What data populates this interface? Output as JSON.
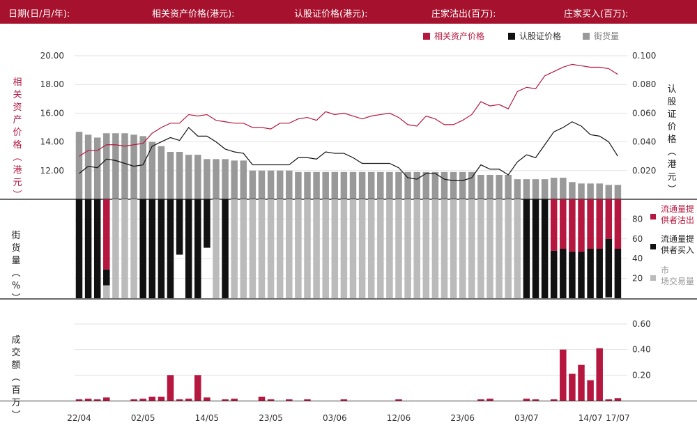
{
  "header": {
    "date": "日期(日/月/年):",
    "underlying": "相关资产价格(港元):",
    "warrant": "认股证价格(港元):",
    "mm_sell": "庄家沽出(百万):",
    "mm_buy": "庄家买入(百万):"
  },
  "legend": {
    "underlying": "相关资产价格",
    "warrant": "认股证价格",
    "outstanding": "街货量"
  },
  "axis_labels": {
    "left_top": "相关资产价格(港元)",
    "right_top": "认股证价格(港元)",
    "left_mid": "街货量(%)",
    "left_bottom": "成交额(百万)"
  },
  "mid_legend": {
    "sell": "流通量提供者沽出",
    "buy": "流通量提供者买入",
    "market": "市场交易量"
  },
  "colors": {
    "brand": "#a6112d",
    "underlying": "#b5173f",
    "warrant": "#111111",
    "outstanding": "#999999",
    "market": "#bbbbbb",
    "turnover": "#b5173f"
  },
  "chart_data": [
    {
      "type": "line",
      "y_left": {
        "range": [
          10.0,
          20.0
        ],
        "ticks": [
          "20.00",
          "18.00",
          "16.00",
          "14.00",
          "12.00"
        ]
      },
      "y_right": {
        "range": [
          0.0,
          0.1
        ],
        "ticks": [
          "0.100",
          "0.080",
          "0.060",
          "0.040",
          "0.020"
        ]
      },
      "x_ticks": [
        "22/04",
        "02/05",
        "14/05",
        "23/05",
        "03/06",
        "12/06",
        "23/06",
        "03/07",
        "14/07",
        "17/07"
      ],
      "x_tick_index": [
        0,
        7,
        14,
        21,
        28,
        35,
        42,
        49,
        56,
        59
      ],
      "series": [
        {
          "name": "相关资产价格",
          "axis": "left",
          "values": [
            13.0,
            13.4,
            13.4,
            13.8,
            13.8,
            13.7,
            13.8,
            13.9,
            14.6,
            15.0,
            15.3,
            15.3,
            15.9,
            15.8,
            15.9,
            15.5,
            15.4,
            15.3,
            15.3,
            15.0,
            15.0,
            14.9,
            15.3,
            15.3,
            15.6,
            15.7,
            15.5,
            16.1,
            15.9,
            16.0,
            15.8,
            15.6,
            15.8,
            15.9,
            16.0,
            15.7,
            15.2,
            15.1,
            15.8,
            15.6,
            15.2,
            15.2,
            15.5,
            15.9,
            16.8,
            16.5,
            16.6,
            16.3,
            17.5,
            17.8,
            17.7,
            18.6,
            18.9,
            19.2,
            19.4,
            19.3,
            19.2,
            19.2,
            19.1,
            18.7
          ]
        },
        {
          "name": "认股证价格",
          "axis": "right",
          "values": [
            0.018,
            0.023,
            0.022,
            0.028,
            0.027,
            0.025,
            0.023,
            0.024,
            0.037,
            0.04,
            0.043,
            0.041,
            0.05,
            0.044,
            0.044,
            0.04,
            0.035,
            0.033,
            0.032,
            0.024,
            0.024,
            0.024,
            0.024,
            0.024,
            0.029,
            0.029,
            0.028,
            0.033,
            0.032,
            0.032,
            0.029,
            0.025,
            0.025,
            0.025,
            0.025,
            0.022,
            0.015,
            0.014,
            0.018,
            0.018,
            0.014,
            0.013,
            0.013,
            0.015,
            0.024,
            0.021,
            0.021,
            0.017,
            0.026,
            0.031,
            0.029,
            0.038,
            0.047,
            0.05,
            0.054,
            0.051,
            0.045,
            0.044,
            0.04,
            0.03
          ]
        },
        {
          "name": "街货量",
          "type": "bar",
          "axis": "left",
          "values": [
            14.7,
            14.5,
            14.3,
            14.6,
            14.6,
            14.6,
            14.5,
            14.4,
            14.0,
            13.7,
            13.3,
            13.3,
            13.1,
            13.1,
            12.8,
            12.8,
            12.8,
            12.7,
            12.7,
            12.0,
            12.0,
            12.0,
            12.0,
            12.0,
            11.9,
            11.9,
            11.9,
            11.9,
            11.9,
            11.9,
            11.9,
            11.9,
            11.9,
            11.9,
            11.9,
            11.9,
            11.9,
            11.9,
            11.9,
            11.9,
            11.9,
            11.9,
            11.9,
            11.9,
            11.7,
            11.7,
            11.7,
            11.7,
            11.4,
            11.4,
            11.4,
            11.4,
            11.5,
            11.5,
            11.2,
            11.1,
            11.1,
            11.1,
            11.0,
            11.0
          ]
        }
      ]
    },
    {
      "type": "bar",
      "y_range": [
        0,
        100
      ],
      "y_ticks": [
        "80",
        "60",
        "40",
        "20"
      ],
      "series": [
        {
          "name": "流通量提供者沽出",
          "values": [
            0,
            0,
            0,
            71,
            0,
            0,
            0,
            0,
            0,
            0,
            0,
            0,
            0,
            0,
            0,
            0,
            0,
            0,
            0,
            0,
            0,
            0,
            0,
            0,
            0,
            0,
            0,
            0,
            0,
            0,
            0,
            0,
            0,
            0,
            0,
            0,
            0,
            0,
            0,
            0,
            0,
            0,
            0,
            0,
            0,
            0,
            0,
            0,
            0,
            0,
            0,
            0,
            52,
            50,
            53,
            53,
            50,
            50,
            40,
            50
          ]
        },
        {
          "name": "流通量提供者买入",
          "values": [
            100,
            100,
            100,
            16,
            0,
            0,
            0,
            100,
            100,
            100,
            100,
            56,
            100,
            100,
            49,
            0,
            100,
            0,
            0,
            0,
            0,
            0,
            0,
            0,
            0,
            0,
            0,
            0,
            0,
            0,
            0,
            0,
            0,
            0,
            0,
            0,
            0,
            0,
            0,
            0,
            0,
            0,
            0,
            0,
            0,
            0,
            0,
            0,
            0,
            100,
            100,
            100,
            48,
            50,
            47,
            47,
            50,
            50,
            59,
            50
          ]
        },
        {
          "name": "市场交易量",
          "values": [
            0,
            0,
            0,
            13,
            100,
            100,
            100,
            0,
            0,
            0,
            0,
            0,
            0,
            0,
            0,
            100,
            0,
            100,
            100,
            100,
            100,
            100,
            100,
            100,
            100,
            100,
            100,
            100,
            100,
            100,
            100,
            100,
            100,
            100,
            100,
            100,
            100,
            100,
            100,
            100,
            100,
            100,
            100,
            100,
            100,
            100,
            100,
            100,
            100,
            0,
            0,
            0,
            0,
            0,
            0,
            0,
            0,
            0,
            1,
            0
          ]
        }
      ],
      "buy_flag": [
        1,
        1,
        1,
        1,
        0,
        0,
        0,
        1,
        1,
        1,
        1,
        1,
        1,
        1,
        1,
        0,
        1,
        0,
        0,
        0,
        0,
        0,
        0,
        0,
        0,
        0,
        0,
        0,
        0,
        0,
        0,
        0,
        1,
        0,
        0,
        0,
        0,
        0,
        0,
        0,
        0,
        0,
        0,
        0,
        1,
        1,
        0,
        0,
        0,
        1,
        1,
        1,
        1,
        1,
        1,
        1,
        1,
        1,
        1,
        1
      ]
    },
    {
      "type": "bar",
      "y_range": [
        0,
        0.6
      ],
      "y_ticks": [
        "0.60",
        "0.40",
        "0.20"
      ],
      "series": [
        {
          "name": "成交额",
          "values": [
            0.01,
            0.015,
            0.01,
            0.025,
            0,
            0,
            0.01,
            0.015,
            0.03,
            0.03,
            0.2,
            0.01,
            0.015,
            0.2,
            0.025,
            0,
            0.01,
            0.015,
            0,
            0,
            0.03,
            0.01,
            0,
            0.01,
            0,
            0.01,
            0,
            0,
            0,
            0.01,
            0,
            0,
            0,
            0,
            0,
            0.01,
            0,
            0,
            0,
            0,
            0,
            0,
            0,
            0,
            0.01,
            0.015,
            0,
            0,
            0,
            0.015,
            0.01,
            0,
            0.01,
            0.4,
            0.21,
            0.28,
            0.16,
            0.41,
            0.01,
            0.02
          ]
        }
      ]
    }
  ]
}
